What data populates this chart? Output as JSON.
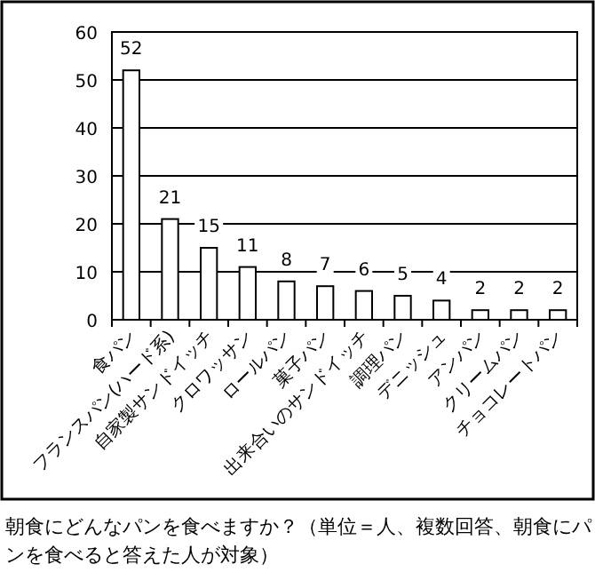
{
  "chart_data": {
    "type": "bar",
    "categories": [
      "食パン",
      "フランスパン(ハード系)",
      "自家製サンドイッチ",
      "クロワッサン",
      "ロールパン",
      "菓子パン",
      "出来合いのサンドイッチ",
      "調理パン",
      "デニッシュ",
      "アンパン",
      "クリームパン",
      "チョコレートパン"
    ],
    "values": [
      52,
      21,
      15,
      11,
      8,
      7,
      6,
      5,
      4,
      2,
      2,
      2
    ],
    "color": "#ffffff",
    "ylim": [
      0,
      60
    ],
    "yticks": [
      0,
      10,
      20,
      30,
      40,
      50,
      60
    ],
    "grid": "y",
    "data_labels": true,
    "annotations": [
      "朝食にどんなパンを食べますか？（単位＝人、複数回答、朝食にパンを食べると答えた人が対象）"
    ]
  }
}
